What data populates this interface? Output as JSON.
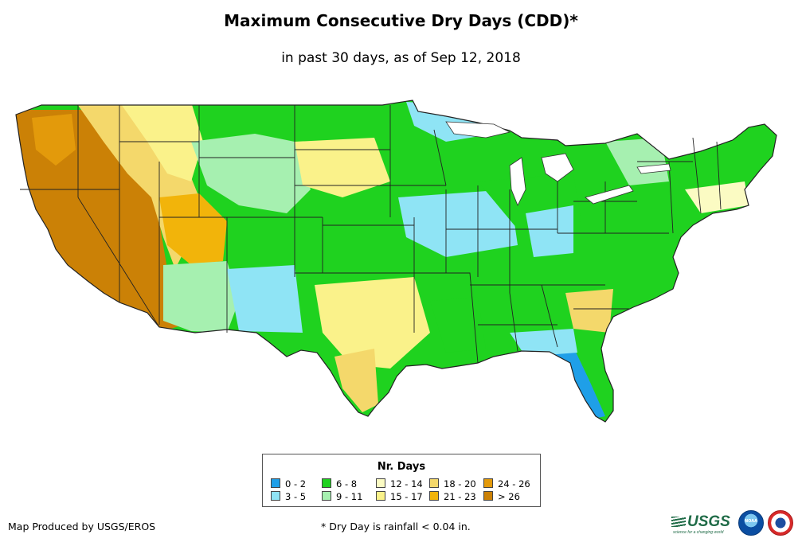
{
  "title": "Maximum Consecutive Dry Days (CDD)*",
  "subtitle": "in past 30 days, as of Sep 12, 2018",
  "legend": {
    "title": "Nr. Days",
    "items": [
      {
        "label": "0 - 2",
        "color": "#1f9fe8"
      },
      {
        "label": "3 - 5",
        "color": "#8fe4f5"
      },
      {
        "label": "6 - 8",
        "color": "#1fd21f"
      },
      {
        "label": "9 - 11",
        "color": "#a6f0b0"
      },
      {
        "label": "12 - 14",
        "color": "#fbfbc3"
      },
      {
        "label": "15 - 17",
        "color": "#faf28a"
      },
      {
        "label": "18 - 20",
        "color": "#f4d86b"
      },
      {
        "label": "21 - 23",
        "color": "#f2b40a"
      },
      {
        "label": "24 - 26",
        "color": "#e39a0b"
      },
      {
        "label": "> 26",
        "color": "#cb8106"
      }
    ]
  },
  "credit": "Map Produced by USGS/EROS",
  "footnote": "* Dry Day is rainfall < 0.04 in.",
  "logos": {
    "usgs": "USGS",
    "usgs_tagline": "science for a changing world",
    "noaa": "NOAA"
  }
}
